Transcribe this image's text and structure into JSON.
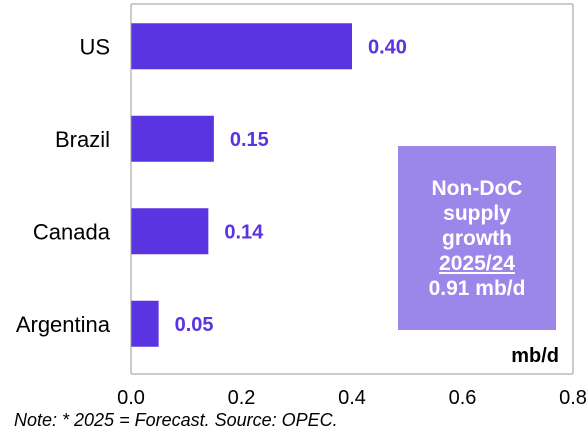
{
  "colors": {
    "bar": "#5a34e0",
    "value_text": "#5a34e0",
    "callout_bg": "#9b87ea",
    "axis": "#999999"
  },
  "chart_data": {
    "type": "bar",
    "orientation": "horizontal",
    "categories": [
      "US",
      "Brazil",
      "Canada",
      "Argentina"
    ],
    "values": [
      0.4,
      0.15,
      0.14,
      0.05
    ],
    "value_labels": [
      "0.40",
      "0.15",
      "0.14",
      "0.05"
    ],
    "xlim": [
      0.0,
      0.8
    ],
    "x_ticks": [
      "0.0",
      "0.2",
      "0.4",
      "0.6",
      "0.8"
    ],
    "unit": "mb/d",
    "grid": false
  },
  "callout": {
    "line1": "Non-DoC",
    "line2": "supply",
    "line3": "growth",
    "line4": "2025/24",
    "line5": "0.91 mb/d"
  },
  "note": "Note: * 2025 = Forecast. Source: OPEC."
}
